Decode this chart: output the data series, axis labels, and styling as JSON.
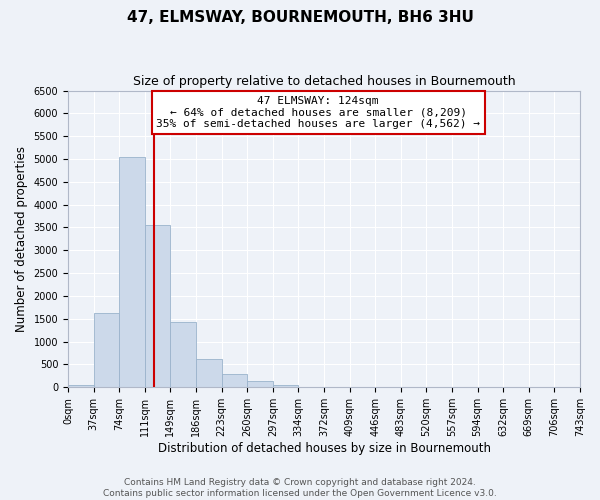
{
  "title": "47, ELMSWAY, BOURNEMOUTH, BH6 3HU",
  "subtitle": "Size of property relative to detached houses in Bournemouth",
  "xlabel": "Distribution of detached houses by size in Bournemouth",
  "ylabel": "Number of detached properties",
  "bar_color": "#ccd9ea",
  "bar_edge_color": "#9ab3cc",
  "background_color": "#eef2f8",
  "grid_color": "#ffffff",
  "bin_edges": [
    0,
    37,
    74,
    111,
    148,
    185,
    222,
    259,
    296,
    333,
    370,
    407,
    444,
    481,
    518,
    555,
    592,
    629,
    666,
    703,
    740
  ],
  "bin_labels": [
    "0sqm",
    "37sqm",
    "74sqm",
    "111sqm",
    "149sqm",
    "186sqm",
    "223sqm",
    "260sqm",
    "297sqm",
    "334sqm",
    "372sqm",
    "409sqm",
    "446sqm",
    "483sqm",
    "520sqm",
    "557sqm",
    "594sqm",
    "632sqm",
    "669sqm",
    "706sqm",
    "743sqm"
  ],
  "bar_heights": [
    55,
    1620,
    5050,
    3560,
    1420,
    610,
    295,
    140,
    50,
    0,
    0,
    0,
    0,
    0,
    0,
    0,
    0,
    0,
    0,
    0
  ],
  "ylim": [
    0,
    6500
  ],
  "yticks": [
    0,
    500,
    1000,
    1500,
    2000,
    2500,
    3000,
    3500,
    4000,
    4500,
    5000,
    5500,
    6000,
    6500
  ],
  "property_line_x": 124,
  "property_line_color": "#cc0000",
  "annotation_title": "47 ELMSWAY: 124sqm",
  "annotation_line1": "← 64% of detached houses are smaller (8,209)",
  "annotation_line2": "35% of semi-detached houses are larger (4,562) →",
  "annotation_box_color": "#ffffff",
  "annotation_border_color": "#cc0000",
  "footer_line1": "Contains HM Land Registry data © Crown copyright and database right 2024.",
  "footer_line2": "Contains public sector information licensed under the Open Government Licence v3.0.",
  "title_fontsize": 11,
  "subtitle_fontsize": 9,
  "axis_label_fontsize": 8.5,
  "tick_fontsize": 7,
  "annotation_fontsize": 8,
  "footer_fontsize": 6.5
}
